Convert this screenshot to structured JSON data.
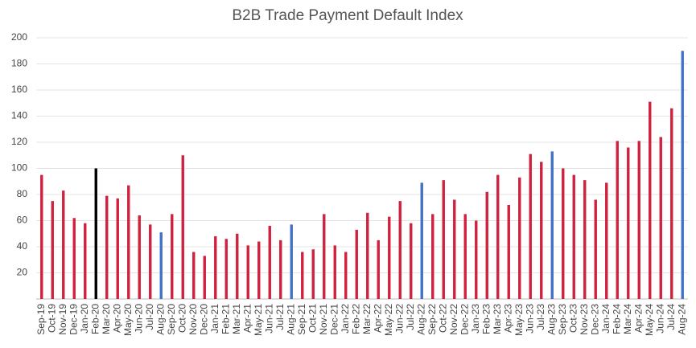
{
  "chart_data": {
    "type": "bar",
    "title": "B2B Trade Payment Default Index",
    "categories": [
      "Sep-19",
      "Oct-19",
      "Nov-19",
      "Dec-19",
      "Jan-20",
      "Feb-20",
      "Mar-20",
      "Apr-20",
      "May-20",
      "Jun-20",
      "Jul-20",
      "Aug-20",
      "Sep-20",
      "Oct-20",
      "Nov-20",
      "Dec-20",
      "Jan-21",
      "Feb-21",
      "Mar-21",
      "Apr-21",
      "May-21",
      "Jun-21",
      "Jul-21",
      "Aug-21",
      "Sep-21",
      "Oct-21",
      "Nov-21",
      "Dec-21",
      "Jan-22",
      "Feb-22",
      "Mar-22",
      "Apr-22",
      "May-22",
      "Jun-22",
      "Jul-22",
      "Aug-22",
      "Sep-22",
      "Oct-22",
      "Nov-22",
      "Dec-22",
      "Jan-23",
      "Feb-23",
      "Mar-23",
      "Apr-23",
      "May-23",
      "Jun-23",
      "Jul-23",
      "Aug-23",
      "Sep-23",
      "Oct-23",
      "Nov-23",
      "Dec-23",
      "Jan-24",
      "Feb-24",
      "Mar-24",
      "Apr-24",
      "May-24",
      "Jun-24",
      "Jul-24",
      "Aug-24"
    ],
    "values": [
      95,
      75,
      83,
      62,
      58,
      100,
      79,
      77,
      87,
      64,
      57,
      51,
      65,
      110,
      36,
      33,
      48,
      46,
      50,
      41,
      44,
      56,
      45,
      57,
      36,
      38,
      65,
      41,
      36,
      53,
      66,
      45,
      63,
      75,
      58,
      89,
      65,
      91,
      76,
      65,
      60,
      82,
      95,
      72,
      93,
      111,
      105,
      113,
      100,
      95,
      91,
      76,
      89,
      121,
      116,
      121,
      151,
      124,
      146,
      190
    ],
    "colors": [
      "#d0223f",
      "#d0223f",
      "#d0223f",
      "#d0223f",
      "#d0223f",
      "#000000",
      "#d0223f",
      "#d0223f",
      "#d0223f",
      "#d0223f",
      "#d0223f",
      "#4472c4",
      "#d0223f",
      "#d0223f",
      "#d0223f",
      "#d0223f",
      "#d0223f",
      "#d0223f",
      "#d0223f",
      "#d0223f",
      "#d0223f",
      "#d0223f",
      "#d0223f",
      "#4472c4",
      "#d0223f",
      "#d0223f",
      "#d0223f",
      "#d0223f",
      "#d0223f",
      "#d0223f",
      "#d0223f",
      "#d0223f",
      "#d0223f",
      "#d0223f",
      "#d0223f",
      "#4472c4",
      "#d0223f",
      "#d0223f",
      "#d0223f",
      "#d0223f",
      "#d0223f",
      "#d0223f",
      "#d0223f",
      "#d0223f",
      "#d0223f",
      "#d0223f",
      "#d0223f",
      "#4472c4",
      "#d0223f",
      "#d0223f",
      "#d0223f",
      "#d0223f",
      "#d0223f",
      "#d0223f",
      "#d0223f",
      "#d0223f",
      "#d0223f",
      "#d0223f",
      "#d0223f",
      "#4472c4"
    ],
    "ylim": [
      0,
      200
    ],
    "yticks": [
      20,
      40,
      60,
      80,
      100,
      120,
      140,
      160,
      180,
      200
    ],
    "grid": true
  }
}
